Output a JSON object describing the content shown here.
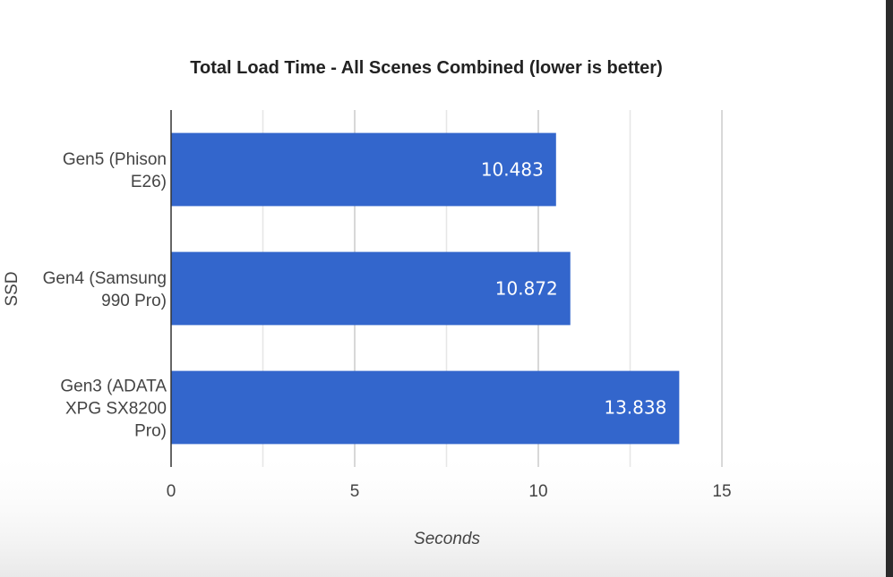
{
  "chart_data": {
    "type": "bar",
    "orientation": "horizontal",
    "title": "Total Load Time - All Scenes Combined (lower is better)",
    "xlabel": "Seconds",
    "ylabel": "SSD",
    "xlim": [
      0,
      15
    ],
    "xticks": [
      0,
      5,
      10,
      15
    ],
    "grid": true,
    "legend": "none",
    "bar_color": "#3366cc",
    "categories": [
      [
        "Gen5 (Phison",
        "E26)"
      ],
      [
        "Gen4 (Samsung",
        "990 Pro)"
      ],
      [
        "Gen3 (ADATA",
        "XPG SX8200",
        "Pro)"
      ]
    ],
    "values": [
      10.483,
      10.872,
      13.838
    ],
    "data_labels": [
      "10.483",
      "10.872",
      "13.838"
    ]
  }
}
